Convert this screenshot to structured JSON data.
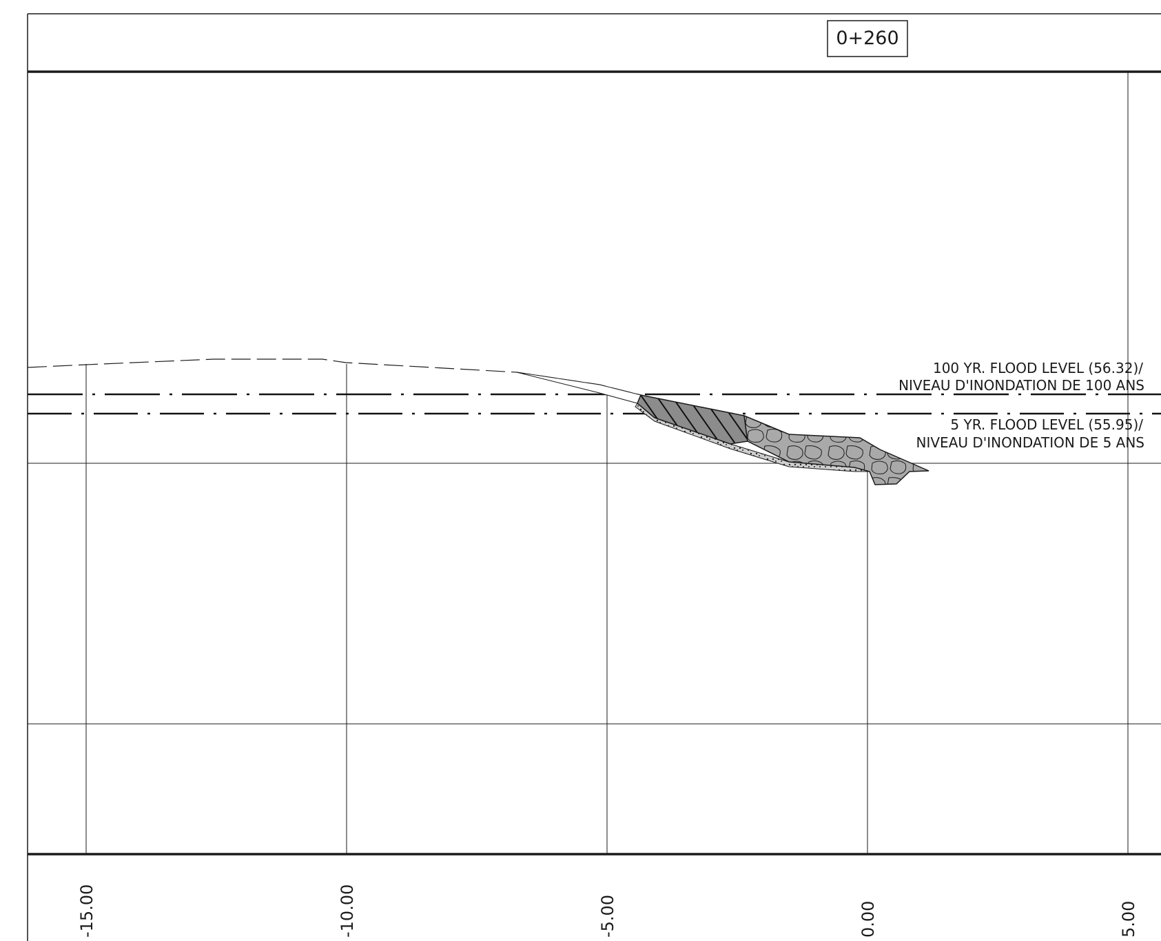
{
  "station": "0+260",
  "flood_levels": [
    {
      "id": "100yr",
      "elevation": 56.32,
      "label_line1": "100 YR. FLOOD LEVEL (56.32)/",
      "label_line2": "NIVEAU D'INONDATION DE 100 ANS"
    },
    {
      "id": "5yr",
      "elevation": 55.95,
      "label_line1": "5 YR. FLOOD LEVEL (55.95)/",
      "label_line2": "NIVEAU D'INONDATION DE 5 ANS"
    }
  ],
  "offset_axis": {
    "ticks": [
      {
        "value": -15,
        "label": "-15.00"
      },
      {
        "value": -10,
        "label": "-10.00"
      },
      {
        "value": -5,
        "label": "-5.00"
      },
      {
        "value": 0,
        "label": "0.00"
      },
      {
        "value": 5,
        "label": "5.00"
      }
    ]
  },
  "colors": {
    "line": "#1a1a1a",
    "riprap_fill": "#a9a9a9",
    "hatch_fill": "#8c8c8c"
  }
}
